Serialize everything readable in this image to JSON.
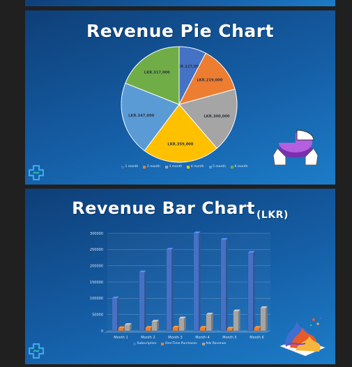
{
  "slides": {
    "pie": {
      "title": "Revenue Pie Chart"
    },
    "bar": {
      "title": "Revenue Bar Chart",
      "title_suffix": "(LKR)"
    }
  },
  "chart_data": [
    {
      "type": "pie",
      "title": "Revenue Pie Chart",
      "labels": [
        "1 month",
        "2 month",
        "3 month",
        "4 month",
        "5 month",
        "6 month"
      ],
      "values": [
        127000,
        219000,
        300000,
        359000,
        347000,
        317000
      ],
      "value_labels": [
        "LKR.127,000",
        "LKR.219,000",
        "LKR.300,000",
        "LKR.359,000",
        "LKR.347,000",
        "LKR.317,000"
      ],
      "colors": [
        "#4472c4",
        "#ed7d31",
        "#a5a5a5",
        "#ffc000",
        "#5b9bd5",
        "#70ad47"
      ],
      "legend": "bottom"
    },
    {
      "type": "bar",
      "title": "Revenue Bar Chart",
      "categories": [
        "Month 1",
        "Month 2",
        "Month 3",
        "Month 4",
        "Month 5",
        "Month 6"
      ],
      "series": [
        {
          "name": "Subscription",
          "values": [
            100000,
            180000,
            250000,
            300000,
            280000,
            240000
          ],
          "color": "#4472c4"
        },
        {
          "name": "One-Time Purchases",
          "values": [
            8000,
            9000,
            10000,
            9000,
            7000,
            9000
          ],
          "color": "#ed7d31"
        },
        {
          "name": "Ads Revenue",
          "values": [
            18000,
            28000,
            38000,
            50000,
            60000,
            70000
          ],
          "color": "#a5a5a5"
        }
      ],
      "ylim": [
        0,
        300000
      ],
      "yticks": [
        0,
        50000,
        100000,
        150000,
        200000,
        250000,
        300000
      ],
      "ytick_labels": [
        "0",
        "50000",
        "100000",
        "150000",
        "200000",
        "250000",
        "300000"
      ],
      "grid": true,
      "legend": "bottom"
    }
  ]
}
